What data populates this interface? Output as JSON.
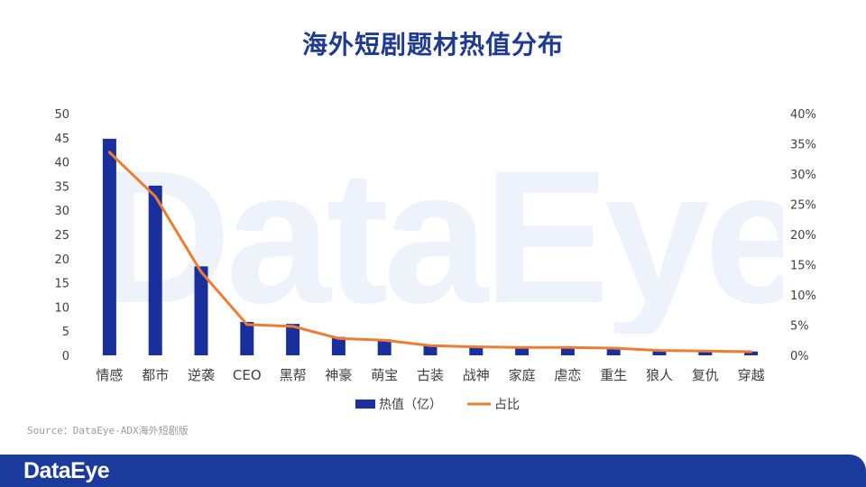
{
  "title": "海外短剧题材热值分布",
  "source": "Source：DataEye-ADX海外短剧版",
  "watermark_text": "DataEye",
  "footer_logo": "DataEye",
  "colors": {
    "title": "#1f3a93",
    "bar": "#1a2f9e",
    "line": "#ed7d31",
    "axis_text": "#404040",
    "footer": "#1a3a9c",
    "watermark": "#eef2fa"
  },
  "chart_data": {
    "type": "bar",
    "categories": [
      "情感",
      "都市",
      "逆袭",
      "CEO",
      "黑帮",
      "神豪",
      "萌宝",
      "古装",
      "战神",
      "家庭",
      "虐恋",
      "重生",
      "狼人",
      "复仇",
      "穿越"
    ],
    "series": [
      {
        "name": "热值（亿）",
        "type": "bar",
        "axis": "left",
        "values": [
          44.8,
          35.1,
          18.4,
          6.9,
          6.5,
          3.8,
          3.3,
          2.1,
          1.8,
          1.7,
          1.7,
          1.6,
          1.1,
          0.9,
          0.8
        ]
      },
      {
        "name": "占比",
        "type": "line",
        "axis": "right",
        "values": [
          33.6,
          26.3,
          13.8,
          5.1,
          4.8,
          2.8,
          2.5,
          1.6,
          1.4,
          1.3,
          1.3,
          1.2,
          0.8,
          0.7,
          0.6
        ]
      }
    ],
    "left_axis": {
      "ylim": [
        0,
        50
      ],
      "ticks": [
        "0",
        "5",
        "10",
        "15",
        "20",
        "25",
        "30",
        "35",
        "40",
        "45",
        "50"
      ]
    },
    "right_axis": {
      "ylim": [
        0,
        40
      ],
      "ticks": [
        "0%",
        "5%",
        "10%",
        "15%",
        "20%",
        "25%",
        "30%",
        "35%",
        "40%"
      ]
    },
    "legend": [
      "热值（亿）",
      "占比"
    ],
    "legend_position": "bottom",
    "grid": false
  }
}
